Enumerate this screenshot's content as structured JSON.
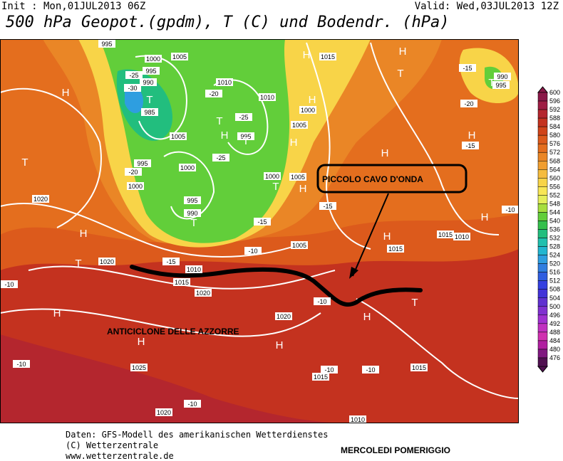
{
  "header": {
    "init": "Init : Mon,01JUL2013 06Z",
    "valid": "Valid: Wed,03JUL2013 12Z",
    "title": "500 hPa Geopot.(gpdm), T (C) und Bodendr. (hPa)"
  },
  "annotations": {
    "trough": "PICCOLO CAVO D'ONDA",
    "anticyclone": "ANTICICLONE DELLE AZZORRE",
    "day": "MERCOLEDI POMERIGGIO"
  },
  "footer": {
    "line1": "Daten: GFS-Modell des amerikanischen Wetterdienstes",
    "line2": "(C) Wetterzentrale",
    "line3": "www.wetterzentrale.de"
  },
  "legend": [
    {
      "label": "600",
      "color": "#8a1848"
    },
    {
      "label": "596",
      "color": "#9e1e44"
    },
    {
      "label": "592",
      "color": "#b4262e"
    },
    {
      "label": "588",
      "color": "#c4321f"
    },
    {
      "label": "584",
      "color": "#d0441a"
    },
    {
      "label": "580",
      "color": "#dc5a1c"
    },
    {
      "label": "576",
      "color": "#e46e1e"
    },
    {
      "label": "572",
      "color": "#ea8626"
    },
    {
      "label": "568",
      "color": "#f09e30"
    },
    {
      "label": "564",
      "color": "#f5bc3e"
    },
    {
      "label": "560",
      "color": "#f8d448"
    },
    {
      "label": "556",
      "color": "#f8e656"
    },
    {
      "label": "552",
      "color": "#e4ee5a"
    },
    {
      "label": "548",
      "color": "#a6de3e"
    },
    {
      "label": "544",
      "color": "#62ce3a"
    },
    {
      "label": "540",
      "color": "#34c04c"
    },
    {
      "label": "536",
      "color": "#22be7e"
    },
    {
      "label": "532",
      "color": "#20c0ae"
    },
    {
      "label": "528",
      "color": "#22b6d0"
    },
    {
      "label": "524",
      "color": "#2e9ee0"
    },
    {
      "label": "520",
      "color": "#307ee0"
    },
    {
      "label": "516",
      "color": "#305ee0"
    },
    {
      "label": "512",
      "color": "#3440e0"
    },
    {
      "label": "508",
      "color": "#4232d8"
    },
    {
      "label": "504",
      "color": "#6030d0"
    },
    {
      "label": "500",
      "color": "#8030d0"
    },
    {
      "label": "496",
      "color": "#a030d0"
    },
    {
      "label": "492",
      "color": "#c030c0"
    },
    {
      "label": "488",
      "color": "#d030b0"
    },
    {
      "label": "484",
      "color": "#b020a0"
    },
    {
      "label": "480",
      "color": "#801880"
    },
    {
      "label": "476",
      "color": "#501050"
    }
  ],
  "pressure_labels": [
    "995",
    "1000",
    "995",
    "990",
    "-25",
    "-30",
    "985",
    "1005",
    "1010",
    "-20",
    "-25",
    "995",
    "1005",
    "-25",
    "1000",
    "995",
    "-20",
    "1000",
    "995",
    "990",
    "1000",
    "1005",
    "1010",
    "1015",
    "1000",
    "1005",
    "1020",
    "1020",
    "1010",
    "1015",
    "1020",
    "1005",
    "1015",
    "1010",
    "1015",
    "1020",
    "1025",
    "1020",
    "1015",
    "1015",
    "1010",
    "-10",
    "-10",
    "-10",
    "-10",
    "-10",
    "-15",
    "-20",
    "-15",
    "-10",
    "990",
    "995",
    "-15",
    "-10",
    "-15",
    "-15",
    "-10"
  ],
  "centers": [
    "H",
    "T",
    "H",
    "T",
    "H",
    "H",
    "H",
    "H",
    "T",
    "T",
    "T",
    "H",
    "T",
    "T",
    "H",
    "H",
    "H",
    "T",
    "H",
    "H",
    "H",
    "T",
    "H",
    "H",
    "T",
    "H"
  ]
}
